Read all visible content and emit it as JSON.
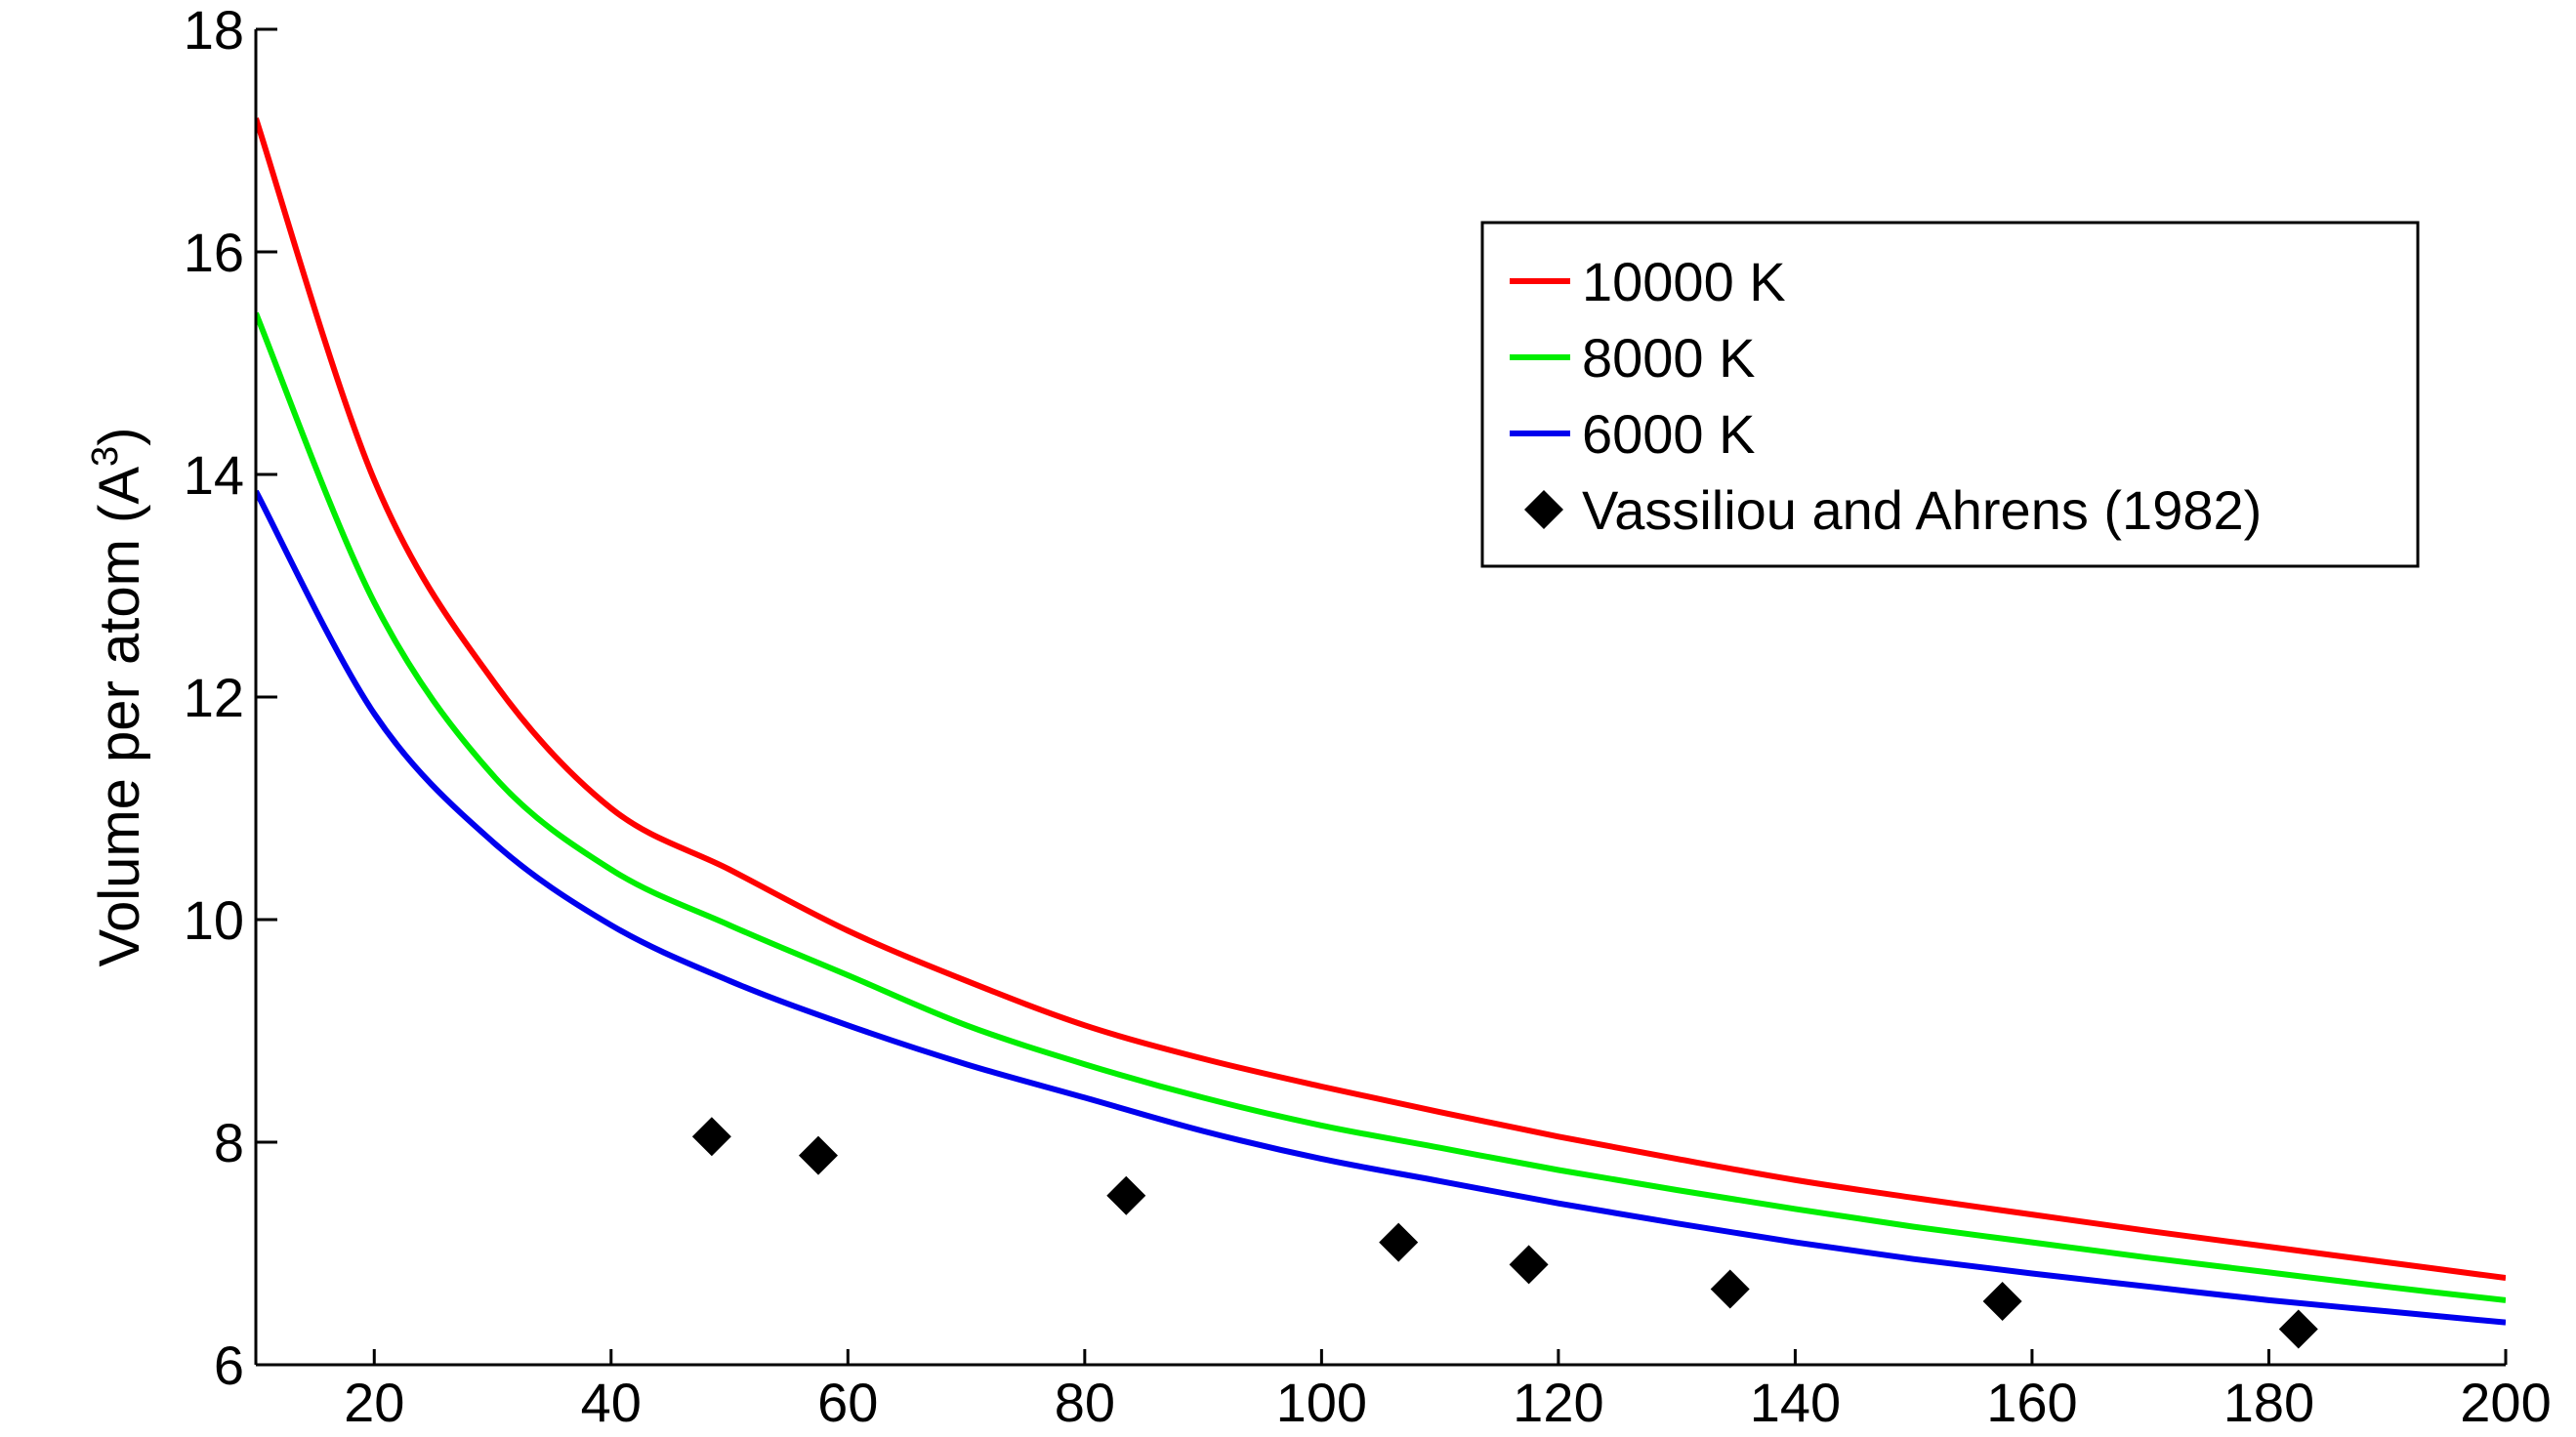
{
  "chart_data": {
    "type": "line",
    "title": "",
    "xlabel": "",
    "ylabel": "Volume per atom (A",
    "ylabel_superscript": "3",
    "ylabel_suffix": ")",
    "xlim": [
      10,
      200
    ],
    "ylim": [
      6,
      18
    ],
    "xticks": [
      20,
      40,
      60,
      80,
      100,
      120,
      140,
      160,
      180,
      200
    ],
    "yticks": [
      6,
      8,
      10,
      12,
      14,
      16,
      18
    ],
    "grid": false,
    "legend_position": "top-right",
    "x": [
      10,
      20,
      30,
      40,
      50,
      60,
      70,
      80,
      90,
      100,
      110,
      120,
      130,
      140,
      150,
      160,
      170,
      180,
      190,
      200
    ],
    "series": [
      {
        "name": "10000 K",
        "color": "#ff0000",
        "style": "line",
        "values": [
          17.2,
          13.95,
          12.15,
          11.0,
          10.45,
          9.9,
          9.45,
          9.05,
          8.75,
          8.5,
          8.27,
          8.05,
          7.85,
          7.66,
          7.5,
          7.35,
          7.2,
          7.06,
          6.92,
          6.78
        ]
      },
      {
        "name": "8000 K",
        "color": "#00ee00",
        "style": "line",
        "values": [
          15.45,
          12.85,
          11.3,
          10.45,
          9.95,
          9.5,
          9.05,
          8.7,
          8.4,
          8.15,
          7.95,
          7.75,
          7.57,
          7.4,
          7.24,
          7.1,
          6.96,
          6.83,
          6.7,
          6.58
        ]
      },
      {
        "name": "6000 K",
        "color": "#0000ee",
        "style": "line",
        "values": [
          13.85,
          11.85,
          10.7,
          9.95,
          9.45,
          9.05,
          8.7,
          8.4,
          8.1,
          7.85,
          7.65,
          7.45,
          7.27,
          7.1,
          6.95,
          6.82,
          6.7,
          6.58,
          6.48,
          6.38
        ]
      },
      {
        "name": "Vassiliou and Ahrens (1982)",
        "color": "#000000",
        "style": "marker",
        "marker": "diamond",
        "points": [
          [
            48.5,
            8.05
          ],
          [
            57.5,
            7.88
          ],
          [
            83.5,
            7.52
          ],
          [
            106.5,
            7.1
          ],
          [
            117.5,
            6.9
          ],
          [
            134.5,
            6.68
          ],
          [
            157.5,
            6.57
          ],
          [
            182.5,
            6.32
          ]
        ]
      }
    ]
  }
}
